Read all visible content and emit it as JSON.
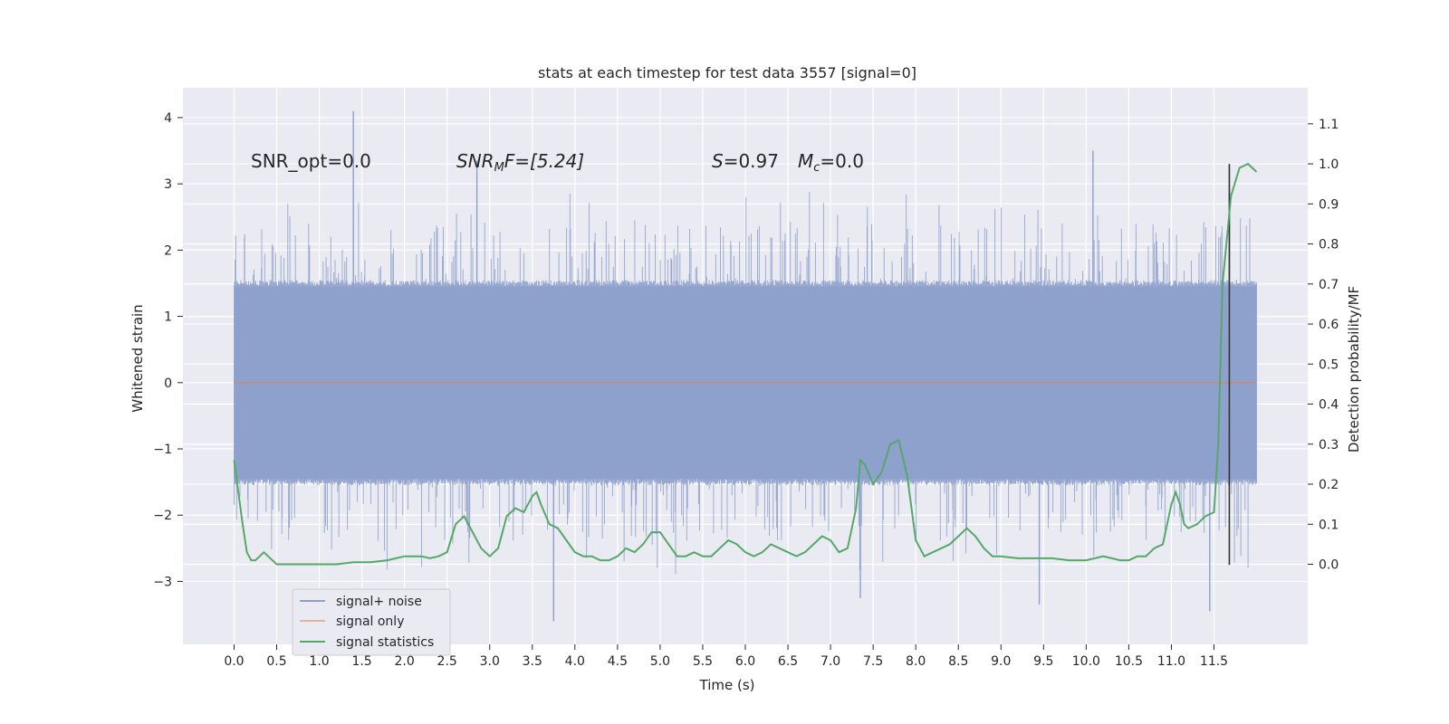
{
  "chart_data": {
    "type": "line",
    "title": "stats at each timestep for test data 3557 [signal=0]",
    "xlabel": "Time (s)",
    "ylabel": "Whitened strain",
    "y2label": "Detection probability/MF",
    "xlim": [
      -0.6,
      12.6
    ],
    "ylim": [
      -3.95,
      4.45
    ],
    "y2lim": [
      -0.2,
      1.19
    ],
    "xticks": [
      0.0,
      0.5,
      1.0,
      1.5,
      2.0,
      2.5,
      3.0,
      3.5,
      4.0,
      4.5,
      5.0,
      5.5,
      6.0,
      6.5,
      7.0,
      7.5,
      8.0,
      8.5,
      9.0,
      9.5,
      10.0,
      10.5,
      11.0,
      11.5
    ],
    "xtick_labels": [
      "0.0",
      "0.5",
      "1.0",
      "1.5",
      "2.0",
      "2.5",
      "3.0",
      "3.5",
      "4.0",
      "4.5",
      "5.0",
      "5.5",
      "6.0",
      "6.5",
      "7.0",
      "7.5",
      "8.0",
      "8.5",
      "9.0",
      "9.5",
      "10.0",
      "10.5",
      "11.0",
      "11.5"
    ],
    "yticks": [
      -3,
      -2,
      -1,
      0,
      1,
      2,
      3,
      4
    ],
    "ytick_labels": [
      "−3",
      "−2",
      "−1",
      "0",
      "1",
      "2",
      "3",
      "4"
    ],
    "y2ticks": [
      0.0,
      0.1,
      0.2,
      0.3,
      0.4,
      0.5,
      0.6,
      0.7,
      0.8,
      0.9,
      1.0,
      1.1
    ],
    "y2tick_labels": [
      "0.0",
      "0.1",
      "0.2",
      "0.3",
      "0.4",
      "0.5",
      "0.6",
      "0.7",
      "0.8",
      "0.9",
      "1.0",
      "1.1"
    ],
    "grid": true,
    "legend_placement": "lower-left",
    "annotations": {
      "snr_opt": "SNR_opt=0.0",
      "snr_mf_main": "SNR",
      "snr_mf_sub": "M",
      "snr_mf_rest": "F=[5.24]",
      "s_var": "S",
      "s_rest": "=0.97",
      "mc_var": "M",
      "mc_sub": "c",
      "mc_rest": "=0.0"
    },
    "vline_x": 11.68,
    "series": [
      {
        "name": "signal+ noise",
        "color": "#8da0cb",
        "x_range": [
          0.0,
          12.0
        ],
        "spike_peaks": [
          {
            "x": 1.4,
            "y": 4.1
          },
          {
            "x": 10.08,
            "y": 3.5
          },
          {
            "x": 11.68,
            "y": 3.3
          },
          {
            "x": 2.85,
            "y": 3.35
          },
          {
            "x": 3.75,
            "y": -3.6
          },
          {
            "x": 11.45,
            "y": -3.45
          },
          {
            "x": 9.45,
            "y": -3.35
          },
          {
            "x": 7.35,
            "y": -3.25
          }
        ]
      },
      {
        "name": "signal only",
        "color": "#dd8452",
        "x": [
          0.0,
          12.0
        ],
        "y": [
          0.0,
          0.0
        ]
      },
      {
        "name": "signal statistics",
        "color": "#55a868",
        "axis": "right",
        "x": [
          0.0,
          0.05,
          0.1,
          0.15,
          0.2,
          0.25,
          0.3,
          0.35,
          0.4,
          0.5,
          0.6,
          0.8,
          1.0,
          1.2,
          1.4,
          1.6,
          1.8,
          1.9,
          2.0,
          2.1,
          2.2,
          2.3,
          2.4,
          2.5,
          2.6,
          2.7,
          2.8,
          2.9,
          3.0,
          3.1,
          3.2,
          3.3,
          3.4,
          3.5,
          3.55,
          3.6,
          3.7,
          3.8,
          3.9,
          4.0,
          4.1,
          4.2,
          4.3,
          4.4,
          4.5,
          4.6,
          4.7,
          4.8,
          4.9,
          5.0,
          5.1,
          5.2,
          5.3,
          5.4,
          5.5,
          5.6,
          5.7,
          5.8,
          5.9,
          6.0,
          6.1,
          6.2,
          6.3,
          6.4,
          6.5,
          6.6,
          6.7,
          6.8,
          6.9,
          7.0,
          7.1,
          7.2,
          7.3,
          7.35,
          7.4,
          7.5,
          7.6,
          7.7,
          7.8,
          7.9,
          8.0,
          8.1,
          8.2,
          8.3,
          8.4,
          8.5,
          8.6,
          8.7,
          8.8,
          8.9,
          9.0,
          9.2,
          9.4,
          9.6,
          9.8,
          10.0,
          10.1,
          10.2,
          10.3,
          10.4,
          10.5,
          10.6,
          10.7,
          10.8,
          10.9,
          11.0,
          11.05,
          11.1,
          11.15,
          11.2,
          11.3,
          11.4,
          11.5,
          11.55,
          11.6,
          11.7,
          11.8,
          11.9,
          12.0
        ],
        "y": [
          0.26,
          0.18,
          0.1,
          0.03,
          0.01,
          0.01,
          0.02,
          0.03,
          0.02,
          0.0,
          0.0,
          0.0,
          0.0,
          0.0,
          0.005,
          0.005,
          0.01,
          0.015,
          0.02,
          0.02,
          0.02,
          0.015,
          0.02,
          0.03,
          0.1,
          0.12,
          0.08,
          0.04,
          0.02,
          0.04,
          0.12,
          0.14,
          0.13,
          0.17,
          0.18,
          0.15,
          0.1,
          0.09,
          0.06,
          0.03,
          0.02,
          0.02,
          0.01,
          0.01,
          0.02,
          0.04,
          0.03,
          0.05,
          0.08,
          0.08,
          0.05,
          0.02,
          0.02,
          0.03,
          0.02,
          0.02,
          0.04,
          0.06,
          0.05,
          0.03,
          0.02,
          0.03,
          0.05,
          0.04,
          0.03,
          0.02,
          0.03,
          0.05,
          0.07,
          0.06,
          0.03,
          0.04,
          0.14,
          0.26,
          0.25,
          0.2,
          0.23,
          0.3,
          0.31,
          0.22,
          0.06,
          0.02,
          0.03,
          0.04,
          0.05,
          0.07,
          0.09,
          0.07,
          0.04,
          0.02,
          0.02,
          0.015,
          0.015,
          0.015,
          0.01,
          0.01,
          0.015,
          0.02,
          0.015,
          0.01,
          0.01,
          0.02,
          0.02,
          0.04,
          0.05,
          0.15,
          0.18,
          0.15,
          0.1,
          0.09,
          0.1,
          0.12,
          0.13,
          0.3,
          0.7,
          0.92,
          0.99,
          1.0,
          0.98
        ]
      }
    ]
  }
}
